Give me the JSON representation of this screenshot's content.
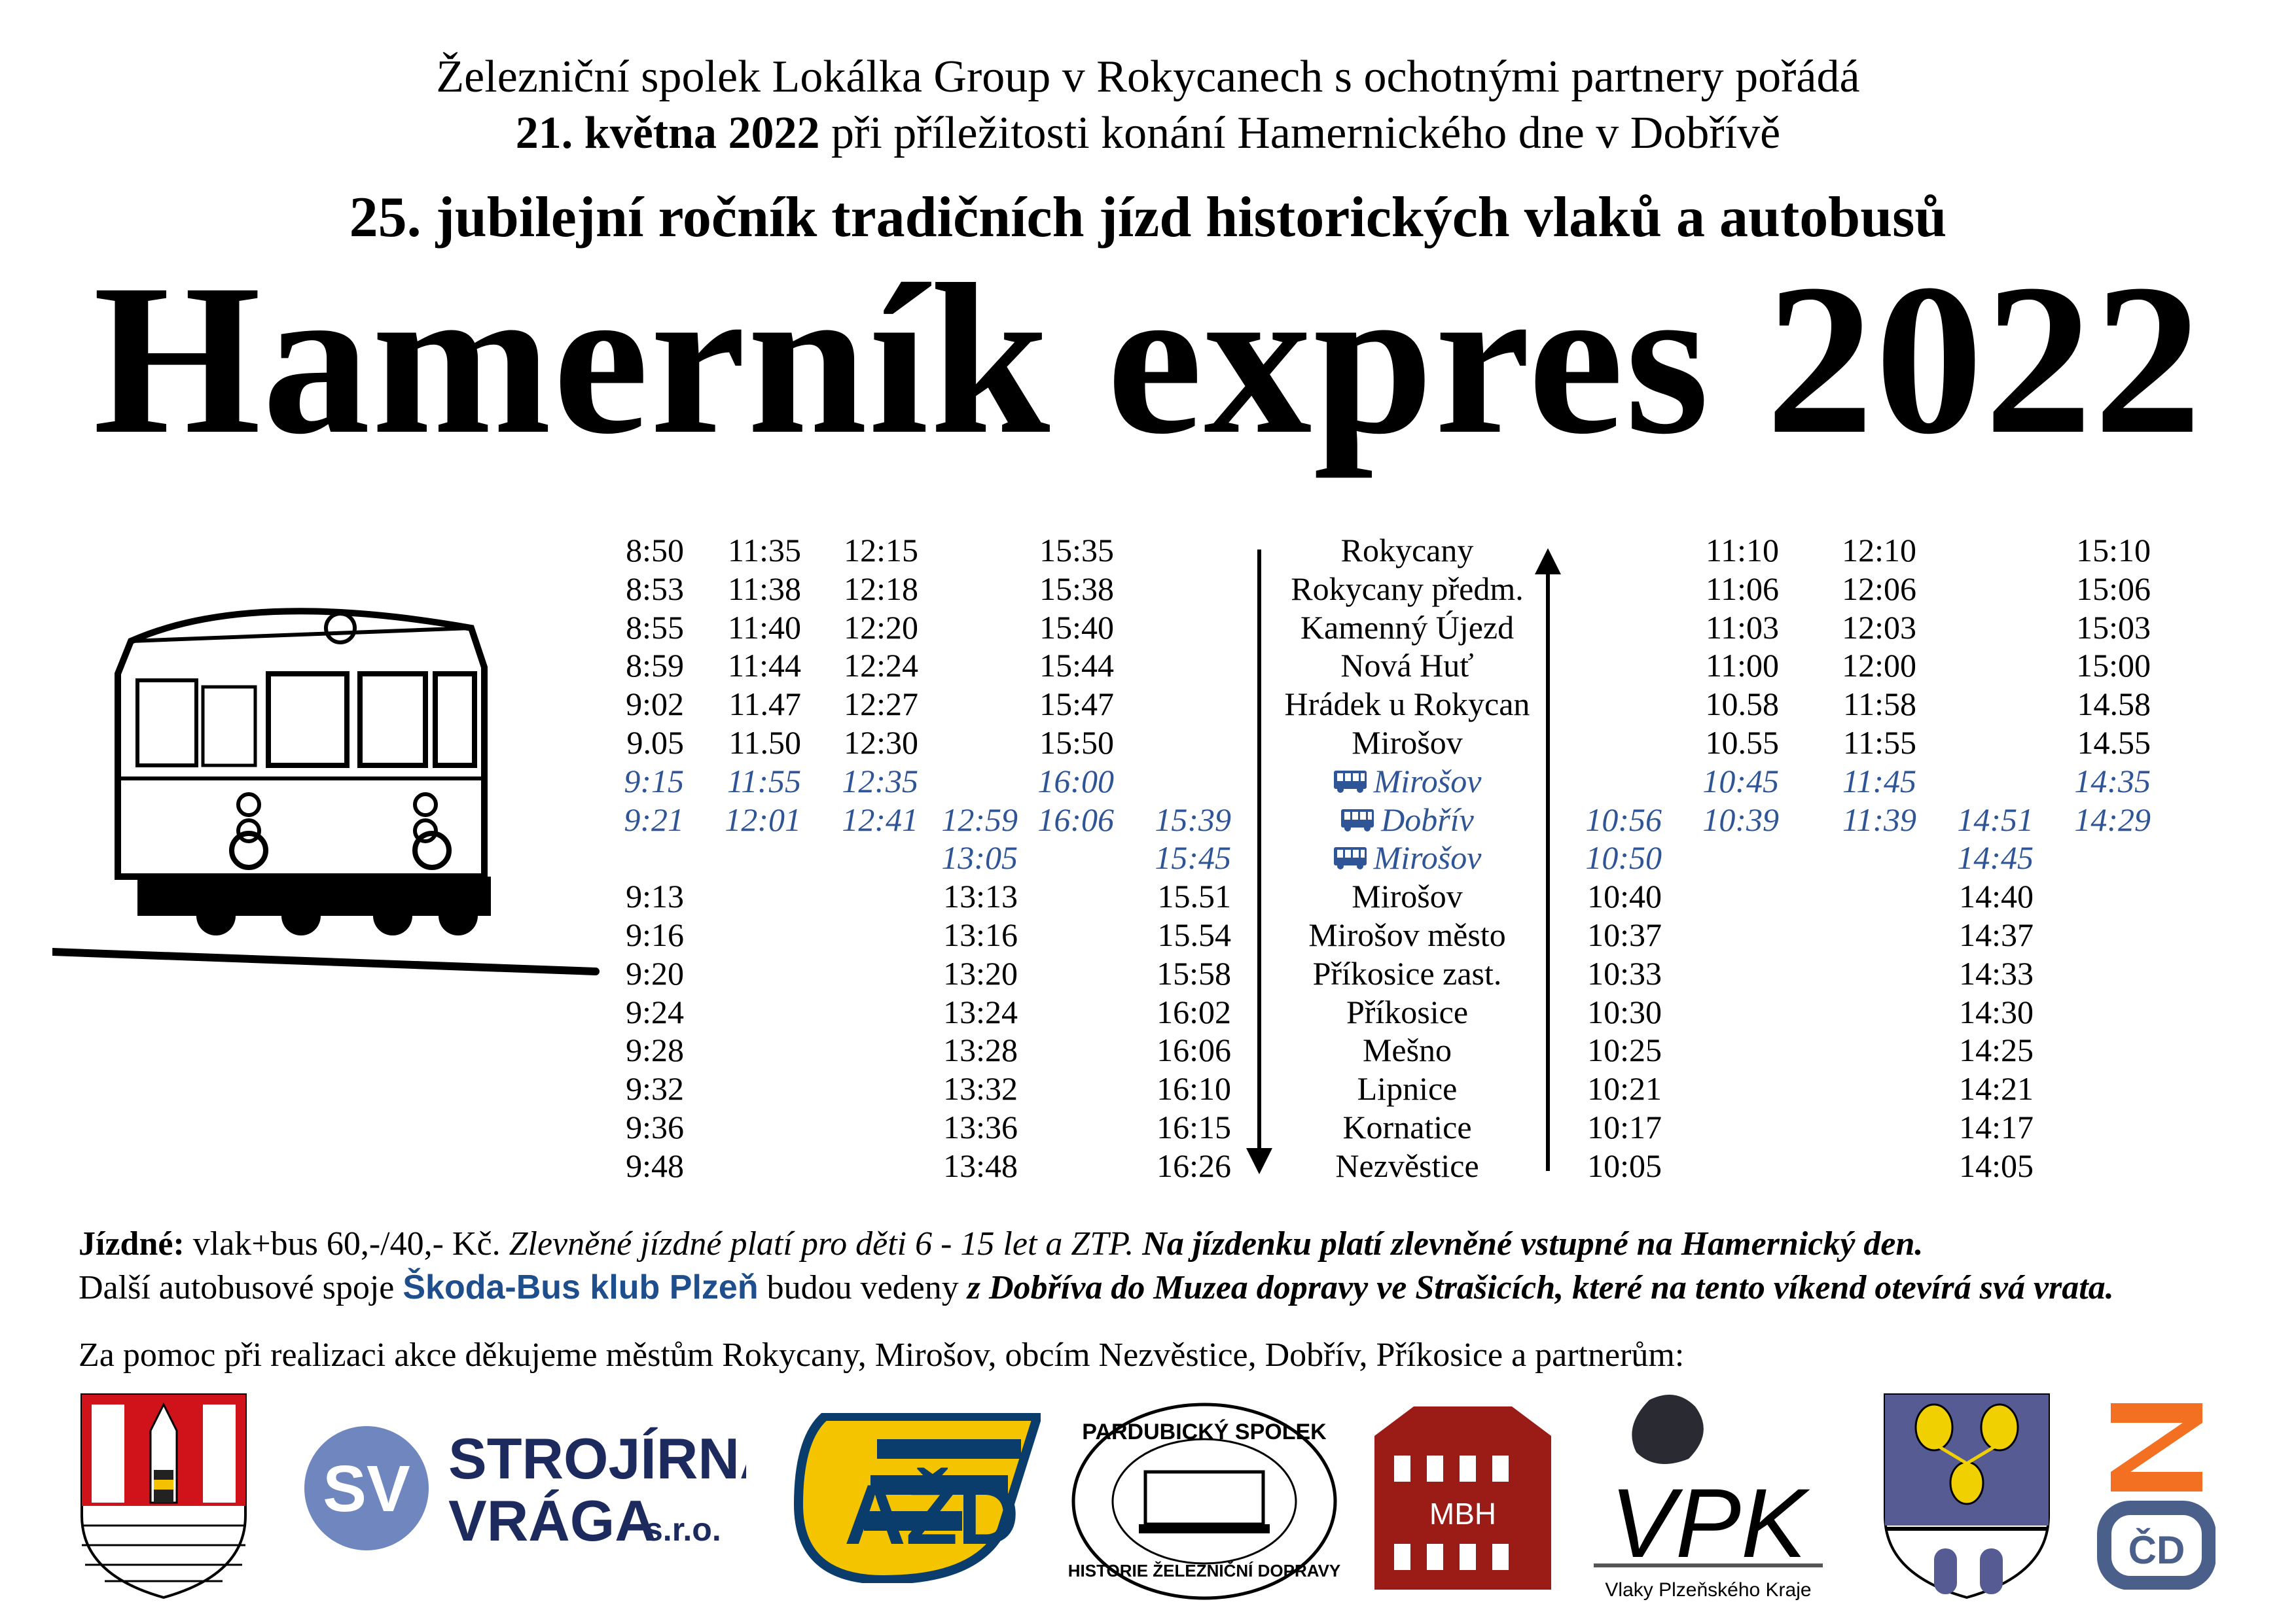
{
  "header": {
    "line1": "Železniční spolek Lokálka Group v Rokycanech s ochotnými partnery pořádá",
    "line2_date": "21. května 2022",
    "line2_rest": " při příležitosti konání Hamernického dne v Dobřívě",
    "line3": "25. jubilejní ročník tradičních jízd historických vlaků a autobusů",
    "title": "Hamerník expres 2022"
  },
  "colors": {
    "bus_text": "#2f5597",
    "skoda_bus": "#1f4e8c"
  },
  "timetable": {
    "rows": [
      {
        "bus": false,
        "left": [
          "8:50",
          "11:35",
          "12:15",
          "",
          "15:35",
          ""
        ],
        "station": "Rokycany",
        "right": [
          "",
          "11:10",
          "12:10",
          "",
          "15:10"
        ]
      },
      {
        "bus": false,
        "left": [
          "8:53",
          "11:38",
          "12:18",
          "",
          "15:38",
          ""
        ],
        "station": "Rokycany předm.",
        "right": [
          "",
          "11:06",
          "12:06",
          "",
          "15:06"
        ]
      },
      {
        "bus": false,
        "left": [
          "8:55",
          "11:40",
          "12:20",
          "",
          "15:40",
          ""
        ],
        "station": "Kamenný Újezd",
        "right": [
          "",
          "11:03",
          "12:03",
          "",
          "15:03"
        ]
      },
      {
        "bus": false,
        "left": [
          "8:59",
          "11:44",
          "12:24",
          "",
          "15:44",
          ""
        ],
        "station": "Nová Huť",
        "right": [
          "",
          "11:00",
          "12:00",
          "",
          "15:00"
        ]
      },
      {
        "bus": false,
        "left": [
          "9:02",
          "11.47",
          "12:27",
          "",
          "15:47",
          ""
        ],
        "station": "Hrádek u Rokycan",
        "right": [
          "",
          "10.58",
          "11:58",
          "",
          "14.58"
        ]
      },
      {
        "bus": false,
        "left": [
          "9.05",
          "11.50",
          "12:30",
          "",
          "15:50",
          ""
        ],
        "station": "Mirošov",
        "right": [
          "",
          "10.55",
          "11:55",
          "",
          "14.55"
        ]
      },
      {
        "bus": true,
        "left": [
          "9:15",
          "11:55",
          "12:35",
          "",
          "16:00",
          ""
        ],
        "station": "Mirošov",
        "right": [
          "",
          "10:45",
          "11:45",
          "",
          "14:35"
        ]
      },
      {
        "bus": true,
        "left": [
          "9:21",
          "12:01",
          "12:41",
          "12:59",
          "16:06",
          "15:39"
        ],
        "station": "Dobřív",
        "right": [
          "10:56",
          "10:39",
          "11:39",
          "14:51",
          "14:29"
        ]
      },
      {
        "bus": true,
        "left": [
          "",
          "",
          "",
          "13:05",
          "",
          "15:45"
        ],
        "station": "Mirošov",
        "right": [
          "10:50",
          "",
          "",
          "14:45",
          ""
        ]
      },
      {
        "bus": false,
        "left": [
          "9:13",
          "",
          "",
          "13:13",
          "",
          "15.51"
        ],
        "station": "Mirošov",
        "right": [
          "10:40",
          "",
          "",
          "14:40",
          ""
        ]
      },
      {
        "bus": false,
        "left": [
          "9:16",
          "",
          "",
          "13:16",
          "",
          "15.54"
        ],
        "station": "Mirošov město",
        "right": [
          "10:37",
          "",
          "",
          "14:37",
          ""
        ]
      },
      {
        "bus": false,
        "left": [
          "9:20",
          "",
          "",
          "13:20",
          "",
          "15:58"
        ],
        "station": "Příkosice zast.",
        "right": [
          "10:33",
          "",
          "",
          "14:33",
          ""
        ]
      },
      {
        "bus": false,
        "left": [
          "9:24",
          "",
          "",
          "13:24",
          "",
          "16:02"
        ],
        "station": "Příkosice",
        "right": [
          "10:30",
          "",
          "",
          "14:30",
          ""
        ]
      },
      {
        "bus": false,
        "left": [
          "9:28",
          "",
          "",
          "13:28",
          "",
          "16:06"
        ],
        "station": "Mešno",
        "right": [
          "10:25",
          "",
          "",
          "14:25",
          ""
        ]
      },
      {
        "bus": false,
        "left": [
          "9:32",
          "",
          "",
          "13:32",
          "",
          "16:10"
        ],
        "station": "Lipnice",
        "right": [
          "10:21",
          "",
          "",
          "14:21",
          ""
        ]
      },
      {
        "bus": false,
        "left": [
          "9:36",
          "",
          "",
          "13:36",
          "",
          "16:15"
        ],
        "station": "Kornatice",
        "right": [
          "10:17",
          "",
          "",
          "14:17",
          ""
        ]
      },
      {
        "bus": false,
        "left": [
          "9:48",
          "",
          "",
          "13:48",
          "",
          "16:26"
        ],
        "station": "Nezvěstice",
        "right": [
          "10:05",
          "",
          "",
          "14:05",
          ""
        ]
      }
    ]
  },
  "footer": {
    "fare_label": "Jízdné:",
    "fare_text": " vlak+bus 60,-/40,- Kč. ",
    "fare_italic": "Zlevněné jízdné platí pro děti 6 - 15 let a ZTP. ",
    "fare_bold_italic": "Na jízdenku platí zlevněné vstupné na Hamernický den.",
    "bus_prefix": "Další autobusové spoje ",
    "bus_club": "Škoda-Bus klub Plzeň",
    "bus_mid": " budou vedeny ",
    "bus_bold_italic": "z Dobříva do Muzea dopravy ve Strašicích, které na tento víkend otevírá svá vrata.",
    "thanks": "Za pomoc při realizaci akce děkujeme městům Rokycany, Mirošov, obcím Nezvěstice, Dobřív, Příkosice a partnerům:"
  },
  "logos": {
    "strojirna_line1": "STROJÍRNA",
    "strojirna_line2": "VRÁGA",
    "strojirna_suffix": "s.r.o.",
    "strojirna_badge": "SV",
    "pardubicky_top": "PARDUBICKÝ SPOLEK",
    "pardubicky_bottom": "HISTORIE ŽELEZNIČNÍ DOPRAVY",
    "mbh": "MBH",
    "vpk": "VPK",
    "vpk_sub": "Vlaky Plzeňského Kraje",
    "azd": "AŽD",
    "cd": "ČD"
  }
}
